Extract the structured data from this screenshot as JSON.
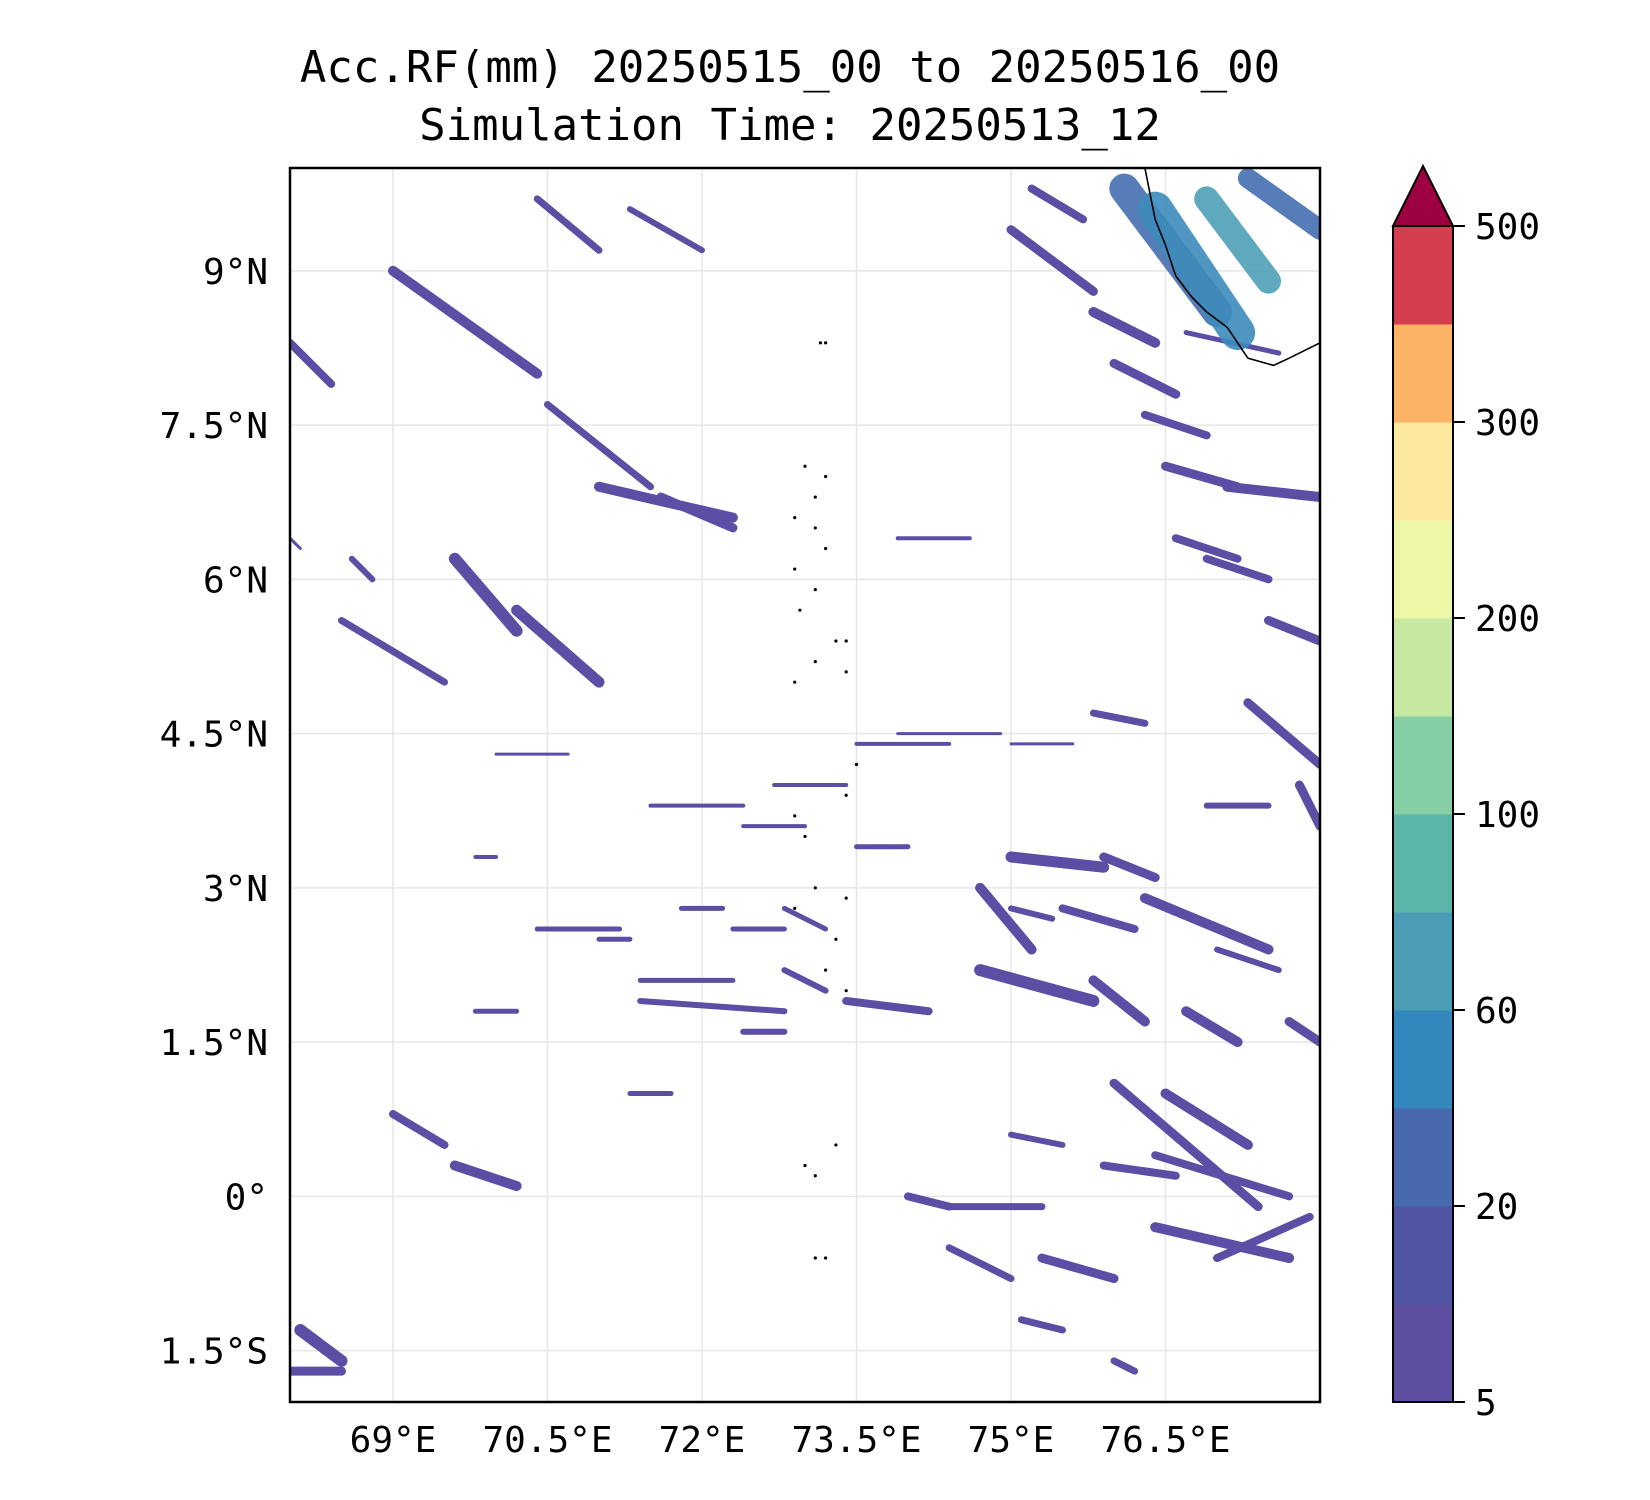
{
  "title": {
    "line1": "Acc.RF(mm) 20250515_00 to 20250516_00",
    "line2": "Simulation Time: 20250513_12"
  },
  "map": {
    "lon_range": [
      68.0,
      78.0
    ],
    "lat_range": [
      -2.0,
      10.0
    ],
    "x_ticks": [
      {
        "value": 69.0,
        "label": "69°E"
      },
      {
        "value": 70.5,
        "label": "70.5°E"
      },
      {
        "value": 72.0,
        "label": "72°E"
      },
      {
        "value": 73.5,
        "label": "73.5°E"
      },
      {
        "value": 75.0,
        "label": "75°E"
      },
      {
        "value": 76.5,
        "label": "76.5°E"
      }
    ],
    "y_ticks": [
      {
        "value": 9.0,
        "label": "9°N"
      },
      {
        "value": 7.5,
        "label": "7.5°N"
      },
      {
        "value": 6.0,
        "label": "6°N"
      },
      {
        "value": 4.5,
        "label": "4.5°N"
      },
      {
        "value": 3.0,
        "label": "3°N"
      },
      {
        "value": 1.5,
        "label": "1.5°N"
      },
      {
        "value": 0.0,
        "label": "0°"
      },
      {
        "value": -1.5,
        "label": "1.5°S"
      }
    ],
    "grid": true,
    "rain_color": "#5b4ea4",
    "heavy_colors": [
      "#4470b0",
      "#3d8cbc",
      "#4ea0b8"
    ],
    "coast_color": "#000000",
    "rain_bands": [
      [
        69.0,
        9.0,
        70.4,
        8.0,
        10
      ],
      [
        68.0,
        8.3,
        68.4,
        7.9,
        8
      ],
      [
        70.5,
        7.7,
        71.5,
        6.9,
        7
      ],
      [
        71.0,
        6.9,
        72.3,
        6.6,
        10
      ],
      [
        71.6,
        6.8,
        72.3,
        6.5,
        9
      ],
      [
        70.4,
        9.7,
        71.0,
        9.2,
        7
      ],
      [
        71.3,
        9.6,
        72.0,
        9.2,
        6
      ],
      [
        69.6,
        6.2,
        70.2,
        5.5,
        12
      ],
      [
        70.2,
        5.7,
        71.0,
        5.0,
        11
      ],
      [
        68.5,
        5.6,
        69.5,
        5.0,
        7
      ],
      [
        68.6,
        6.2,
        68.8,
        6.0,
        6
      ],
      [
        69.0,
        0.8,
        69.5,
        0.5,
        8
      ],
      [
        69.6,
        0.3,
        70.2,
        0.1,
        10
      ],
      [
        68.1,
        -1.3,
        68.5,
        -1.6,
        12
      ],
      [
        68.0,
        -1.7,
        68.5,
        -1.7,
        9
      ],
      [
        71.5,
        3.8,
        72.4,
        3.8,
        4
      ],
      [
        73.5,
        4.4,
        74.4,
        4.4,
        4
      ],
      [
        72.7,
        4.0,
        73.4,
        4.0,
        4
      ],
      [
        72.4,
        3.6,
        73.0,
        3.6,
        4
      ],
      [
        73.5,
        3.4,
        74.0,
        3.4,
        5
      ],
      [
        73.4,
        1.9,
        74.2,
        1.8,
        8
      ],
      [
        71.0,
        2.5,
        71.3,
        2.5,
        5
      ],
      [
        71.4,
        2.1,
        72.3,
        2.1,
        5
      ],
      [
        71.4,
        1.9,
        72.8,
        1.8,
        6
      ],
      [
        72.8,
        2.2,
        73.2,
        2.0,
        6
      ],
      [
        72.4,
        1.6,
        72.8,
        1.6,
        6
      ],
      [
        71.8,
        2.8,
        72.2,
        2.8,
        5
      ],
      [
        72.3,
        2.6,
        72.8,
        2.6,
        5
      ],
      [
        72.8,
        2.8,
        73.2,
        2.6,
        5
      ],
      [
        70.4,
        2.6,
        71.2,
        2.6,
        5
      ],
      [
        69.8,
        1.8,
        70.2,
        1.8,
        5
      ],
      [
        71.3,
        1.0,
        71.7,
        1.0,
        5
      ],
      [
        75.0,
        3.3,
        75.9,
        3.2,
        11
      ],
      [
        75.9,
        3.3,
        76.4,
        3.1,
        9
      ],
      [
        75.5,
        2.8,
        76.2,
        2.6,
        8
      ],
      [
        76.3,
        2.9,
        77.5,
        2.4,
        10
      ],
      [
        74.7,
        3.0,
        75.2,
        2.4,
        10
      ],
      [
        74.7,
        2.2,
        75.8,
        1.9,
        12
      ],
      [
        75.8,
        2.1,
        76.3,
        1.7,
        10
      ],
      [
        76.7,
        1.8,
        77.2,
        1.5,
        10
      ],
      [
        76.0,
        1.1,
        77.4,
        -0.1,
        9
      ],
      [
        76.5,
        1.0,
        77.3,
        0.5,
        10
      ],
      [
        76.4,
        0.4,
        77.7,
        0.0,
        8
      ],
      [
        74.4,
        -0.1,
        75.3,
        -0.1,
        7
      ],
      [
        76.4,
        -0.3,
        77.7,
        -0.6,
        10
      ],
      [
        75.3,
        -0.6,
        76.0,
        -0.8,
        9
      ],
      [
        74.0,
        0.0,
        74.4,
        -0.1,
        8
      ],
      [
        75.9,
        0.3,
        76.6,
        0.2,
        8
      ],
      [
        75.0,
        0.6,
        75.5,
        0.5,
        6
      ],
      [
        77.1,
        6.9,
        78.0,
        6.8,
        10
      ],
      [
        76.5,
        7.1,
        77.2,
        6.9,
        9
      ],
      [
        76.9,
        6.2,
        77.5,
        6.0,
        8
      ],
      [
        76.3,
        7.6,
        76.9,
        7.4,
        8
      ],
      [
        76.0,
        8.1,
        76.6,
        7.8,
        9
      ],
      [
        75.8,
        8.6,
        76.4,
        8.3,
        10
      ],
      [
        75.0,
        9.4,
        75.8,
        8.8,
        9
      ],
      [
        75.2,
        9.8,
        75.7,
        9.5,
        8
      ],
      [
        76.6,
        6.4,
        77.2,
        6.2,
        8
      ],
      [
        77.5,
        5.6,
        78.0,
        5.4,
        9
      ],
      [
        77.3,
        4.8,
        78.0,
        4.2,
        9
      ],
      [
        75.8,
        4.7,
        76.3,
        4.6,
        7
      ],
      [
        76.9,
        3.8,
        77.5,
        3.8,
        6
      ],
      [
        77.8,
        4.0,
        78.0,
        3.6,
        9
      ],
      [
        77.7,
        1.7,
        78.0,
        1.5,
        9
      ],
      [
        76.0,
        -1.6,
        76.2,
        -1.7,
        7
      ],
      [
        74.4,
        -0.5,
        75.0,
        -0.8,
        7
      ],
      [
        75.1,
        -1.2,
        75.5,
        -1.3,
        7
      ],
      [
        77.0,
        2.4,
        77.6,
        2.2,
        6
      ],
      [
        73.9,
        6.4,
        74.6,
        6.4,
        4
      ],
      [
        73.9,
        4.5,
        74.9,
        4.5,
        3
      ],
      [
        75.0,
        4.4,
        75.6,
        4.4,
        3
      ],
      [
        76.7,
        8.4,
        77.6,
        8.2,
        5
      ],
      [
        69.8,
        3.3,
        70.0,
        3.3,
        4
      ],
      [
        75.0,
        2.8,
        75.4,
        2.7,
        6
      ],
      [
        77.0,
        -0.6,
        77.9,
        -0.2,
        8
      ],
      [
        68.0,
        6.4,
        68.1,
        6.3,
        3
      ],
      [
        70.0,
        4.3,
        70.7,
        4.3,
        3
      ]
    ],
    "heavy_bands": [
      [
        76.1,
        9.8,
        77.0,
        8.6,
        12
      ],
      [
        76.4,
        9.6,
        77.2,
        8.4,
        14
      ],
      [
        76.9,
        9.7,
        77.5,
        8.9,
        10
      ],
      [
        77.3,
        9.9,
        78.0,
        9.4,
        8
      ]
    ],
    "coastline": [
      [
        76.3,
        10.0
      ],
      [
        76.35,
        9.75
      ],
      [
        76.4,
        9.5
      ],
      [
        76.5,
        9.25
      ],
      [
        76.55,
        9.1
      ],
      [
        76.6,
        8.95
      ],
      [
        76.75,
        8.75
      ],
      [
        76.9,
        8.6
      ],
      [
        77.1,
        8.45
      ],
      [
        77.3,
        8.15
      ],
      [
        77.55,
        8.08
      ],
      [
        77.7,
        8.15
      ],
      [
        78.0,
        8.3
      ]
    ],
    "islands": [
      [
        73.0,
        7.1
      ],
      [
        73.2,
        7.0
      ],
      [
        73.1,
        6.8
      ],
      [
        72.9,
        6.6
      ],
      [
        73.1,
        6.5
      ],
      [
        73.2,
        6.3
      ],
      [
        72.9,
        6.1
      ],
      [
        73.1,
        5.9
      ],
      [
        72.95,
        5.7
      ],
      [
        73.3,
        5.4
      ],
      [
        73.4,
        5.4
      ],
      [
        73.1,
        5.2
      ],
      [
        72.9,
        5.0
      ],
      [
        73.4,
        5.1
      ],
      [
        73.5,
        4.2
      ],
      [
        73.4,
        3.9
      ],
      [
        72.9,
        3.7
      ],
      [
        73.0,
        3.5
      ],
      [
        73.1,
        3.0
      ],
      [
        72.9,
        2.8
      ],
      [
        73.4,
        2.9
      ],
      [
        73.3,
        2.5
      ],
      [
        73.2,
        2.2
      ],
      [
        73.4,
        2.0
      ],
      [
        73.0,
        0.3
      ],
      [
        73.1,
        0.2
      ],
      [
        73.3,
        0.5
      ],
      [
        73.2,
        -0.6
      ],
      [
        73.1,
        -0.6
      ],
      [
        73.5,
        4.2
      ],
      [
        73.15,
        8.3
      ],
      [
        73.2,
        8.3
      ]
    ]
  },
  "colorbar": {
    "colors": [
      "#5e4fa2",
      "#5055a3",
      "#4769ae",
      "#3288bd",
      "#4b9db5",
      "#5bb5a8",
      "#86cfa5",
      "#c6e8a0",
      "#eef7a6",
      "#fde99e",
      "#fdb366",
      "#d53e4f"
    ],
    "extend_color": "#9e0142",
    "tick_labels": [
      {
        "label": "500",
        "index": 12
      },
      {
        "label": "300",
        "index": 10
      },
      {
        "label": "200",
        "index": 8
      },
      {
        "label": "100",
        "index": 6
      },
      {
        "label": "60",
        "index": 4
      },
      {
        "label": "20",
        "index": 2
      },
      {
        "label": "5",
        "index": 0
      }
    ]
  }
}
